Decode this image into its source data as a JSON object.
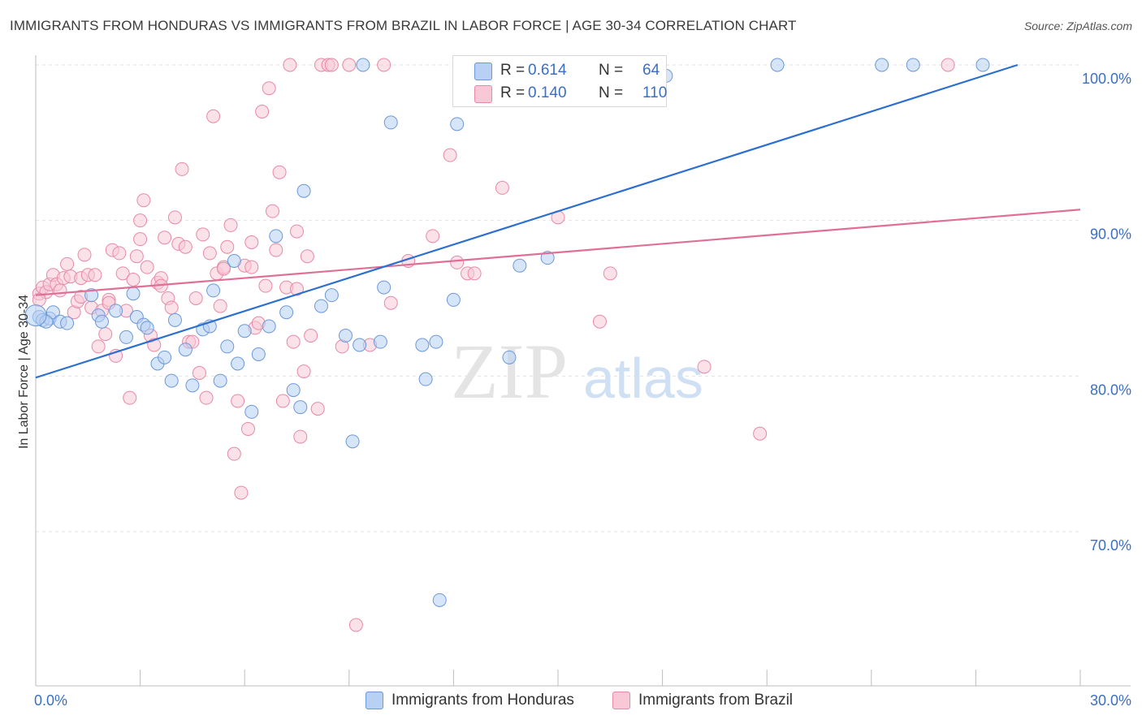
{
  "title": "IMMIGRANTS FROM HONDURAS VS IMMIGRANTS FROM BRAZIL IN LABOR FORCE | AGE 30-34 CORRELATION CHART",
  "source": "Source: ZipAtlas.com",
  "watermark": {
    "zip": "ZIP",
    "atlas": "atlas"
  },
  "legend": {
    "rows": [
      {
        "r_label": "R =",
        "r_value": "0.614",
        "n_label": "N =",
        "n_value": "64"
      },
      {
        "r_label": "R =",
        "r_value": "0.140",
        "n_label": "N =",
        "n_value": "110"
      }
    ]
  },
  "colors": {
    "honduras_fill": "#b7d0f3",
    "honduras_stroke": "#6c98d8",
    "honduras_line": "#2d6fcf",
    "brazil_fill": "#f8c8d6",
    "brazil_stroke": "#e889a7",
    "brazil_line": "#e06f97",
    "axis_text": "#3b6fc4",
    "grid": "#e2e2e2"
  },
  "chart_data": {
    "type": "scatter",
    "title": "IMMIGRANTS FROM HONDURAS VS IMMIGRANTS FROM BRAZIL IN LABOR FORCE | AGE 30-34 CORRELATION CHART",
    "xlabel": "",
    "ylabel": "In Labor Force | Age 30-34",
    "xlim": [
      0,
      30
    ],
    "ylim": [
      62,
      101.5
    ],
    "x_ticks": [
      "0.0%",
      "30.0%"
    ],
    "y_ticks": [
      {
        "value": 70,
        "label": "70.0%"
      },
      {
        "value": 80,
        "label": "80.0%"
      },
      {
        "value": 90,
        "label": "90.0%"
      },
      {
        "value": 100,
        "label": "100.0%"
      }
    ],
    "grid": true,
    "legend_placement": "bottom",
    "series": [
      {
        "name": "Immigrants from Honduras",
        "r": 0.614,
        "n": 64,
        "trend": [
          [
            0,
            79.9
          ],
          [
            28.2,
            100.0
          ]
        ],
        "points": [
          [
            0.1,
            83.8
          ],
          [
            0.2,
            83.6
          ],
          [
            0.4,
            83.7
          ],
          [
            0.5,
            84.1
          ],
          [
            0.7,
            83.5
          ],
          [
            0.9,
            83.4
          ],
          [
            1.6,
            85.2
          ],
          [
            1.8,
            83.9
          ],
          [
            1.9,
            83.5
          ],
          [
            2.3,
            84.2
          ],
          [
            2.6,
            82.5
          ],
          [
            2.8,
            85.3
          ],
          [
            2.9,
            83.8
          ],
          [
            3.1,
            83.3
          ],
          [
            3.2,
            83.1
          ],
          [
            3.5,
            80.8
          ],
          [
            3.7,
            81.2
          ],
          [
            3.9,
            79.7
          ],
          [
            4.0,
            83.6
          ],
          [
            4.3,
            81.7
          ],
          [
            4.5,
            79.4
          ],
          [
            4.8,
            83.0
          ],
          [
            5.0,
            83.2
          ],
          [
            5.1,
            85.5
          ],
          [
            5.3,
            79.7
          ],
          [
            5.5,
            81.9
          ],
          [
            5.7,
            87.4
          ],
          [
            5.8,
            80.8
          ],
          [
            6.0,
            82.9
          ],
          [
            6.2,
            77.7
          ],
          [
            6.4,
            81.4
          ],
          [
            6.7,
            83.2
          ],
          [
            6.9,
            89.0
          ],
          [
            7.2,
            84.1
          ],
          [
            7.4,
            79.1
          ],
          [
            7.6,
            78.0
          ],
          [
            7.7,
            91.9
          ],
          [
            8.2,
            84.5
          ],
          [
            8.5,
            85.2
          ],
          [
            8.9,
            82.6
          ],
          [
            9.1,
            75.8
          ],
          [
            9.3,
            82.0
          ],
          [
            9.4,
            100.0
          ],
          [
            9.9,
            82.2
          ],
          [
            10.0,
            85.7
          ],
          [
            10.2,
            96.3
          ],
          [
            11.1,
            82.0
          ],
          [
            11.2,
            79.8
          ],
          [
            11.5,
            82.2
          ],
          [
            11.6,
            65.6
          ],
          [
            12.0,
            84.9
          ],
          [
            12.1,
            96.2
          ],
          [
            13.6,
            81.2
          ],
          [
            13.9,
            87.1
          ],
          [
            14.7,
            87.6
          ],
          [
            15.0,
            100.0
          ],
          [
            16.5,
            100.0
          ],
          [
            18.1,
            99.3
          ],
          [
            21.3,
            100.0
          ],
          [
            24.3,
            100.0
          ],
          [
            25.2,
            100.0
          ],
          [
            27.2,
            100.0
          ],
          [
            0.3,
            83.5
          ],
          [
            0.0,
            83.9
          ]
        ]
      },
      {
        "name": "Immigrants from Brazil",
        "r": 0.14,
        "n": 110,
        "trend": [
          [
            0,
            85.2
          ],
          [
            30,
            90.7
          ]
        ],
        "points": [
          [
            0.1,
            85.3
          ],
          [
            0.2,
            85.7
          ],
          [
            0.3,
            85.4
          ],
          [
            0.4,
            85.9
          ],
          [
            0.5,
            86.5
          ],
          [
            0.6,
            85.9
          ],
          [
            0.7,
            85.5
          ],
          [
            0.8,
            86.3
          ],
          [
            0.9,
            87.2
          ],
          [
            1.0,
            86.4
          ],
          [
            1.1,
            84.1
          ],
          [
            1.2,
            84.8
          ],
          [
            1.3,
            86.3
          ],
          [
            1.4,
            87.8
          ],
          [
            1.5,
            86.5
          ],
          [
            1.6,
            84.4
          ],
          [
            1.7,
            86.5
          ],
          [
            1.8,
            81.9
          ],
          [
            1.9,
            84.2
          ],
          [
            2.0,
            82.7
          ],
          [
            2.1,
            84.9
          ],
          [
            2.2,
            88.1
          ],
          [
            2.3,
            81.3
          ],
          [
            2.4,
            87.9
          ],
          [
            2.5,
            86.6
          ],
          [
            2.6,
            84.2
          ],
          [
            2.7,
            78.6
          ],
          [
            2.8,
            86.2
          ],
          [
            2.9,
            87.7
          ],
          [
            3.0,
            88.8
          ],
          [
            3.0,
            90.0
          ],
          [
            3.1,
            91.3
          ],
          [
            3.2,
            87.0
          ],
          [
            3.3,
            82.6
          ],
          [
            3.4,
            82.0
          ],
          [
            3.5,
            86.0
          ],
          [
            3.6,
            86.3
          ],
          [
            3.7,
            88.9
          ],
          [
            3.8,
            85.0
          ],
          [
            3.9,
            84.4
          ],
          [
            4.0,
            90.2
          ],
          [
            4.1,
            88.5
          ],
          [
            4.2,
            93.3
          ],
          [
            4.3,
            88.3
          ],
          [
            4.4,
            82.2
          ],
          [
            4.5,
            82.2
          ],
          [
            4.6,
            85.0
          ],
          [
            4.7,
            80.2
          ],
          [
            4.8,
            89.1
          ],
          [
            4.9,
            78.6
          ],
          [
            5.0,
            87.9
          ],
          [
            5.1,
            96.7
          ],
          [
            5.2,
            86.6
          ],
          [
            5.3,
            84.5
          ],
          [
            5.4,
            87.0
          ],
          [
            5.5,
            88.3
          ],
          [
            5.6,
            89.7
          ],
          [
            5.7,
            75.0
          ],
          [
            5.8,
            78.4
          ],
          [
            5.9,
            72.5
          ],
          [
            6.0,
            87.1
          ],
          [
            6.1,
            76.6
          ],
          [
            6.2,
            88.6
          ],
          [
            6.3,
            83.1
          ],
          [
            6.4,
            83.4
          ],
          [
            6.5,
            97.0
          ],
          [
            6.6,
            85.8
          ],
          [
            6.7,
            98.5
          ],
          [
            6.8,
            90.6
          ],
          [
            6.9,
            88.1
          ],
          [
            7.0,
            93.1
          ],
          [
            7.1,
            78.4
          ],
          [
            7.2,
            85.7
          ],
          [
            7.3,
            100.0
          ],
          [
            7.4,
            82.2
          ],
          [
            7.5,
            89.3
          ],
          [
            7.6,
            76.1
          ],
          [
            7.7,
            80.3
          ],
          [
            7.8,
            87.7
          ],
          [
            7.9,
            82.6
          ],
          [
            8.1,
            77.9
          ],
          [
            8.2,
            100.0
          ],
          [
            8.4,
            100.0
          ],
          [
            8.5,
            100.0
          ],
          [
            8.8,
            81.9
          ],
          [
            9.0,
            100.0
          ],
          [
            9.2,
            64.0
          ],
          [
            9.6,
            82.0
          ],
          [
            10.0,
            100.0
          ],
          [
            10.2,
            84.7
          ],
          [
            10.7,
            87.4
          ],
          [
            11.4,
            89.0
          ],
          [
            11.9,
            94.2
          ],
          [
            12.1,
            87.3
          ],
          [
            12.4,
            86.6
          ],
          [
            12.6,
            86.6
          ],
          [
            13.4,
            92.1
          ],
          [
            15.0,
            90.2
          ],
          [
            16.2,
            83.5
          ],
          [
            16.5,
            86.6
          ],
          [
            19.2,
            80.6
          ],
          [
            20.8,
            76.3
          ],
          [
            26.2,
            100.0
          ],
          [
            0.1,
            84.9
          ],
          [
            1.3,
            85.1
          ],
          [
            2.1,
            84.7
          ],
          [
            3.6,
            85.8
          ],
          [
            5.4,
            86.9
          ],
          [
            6.2,
            87.0
          ],
          [
            7.5,
            85.6
          ]
        ]
      }
    ]
  }
}
